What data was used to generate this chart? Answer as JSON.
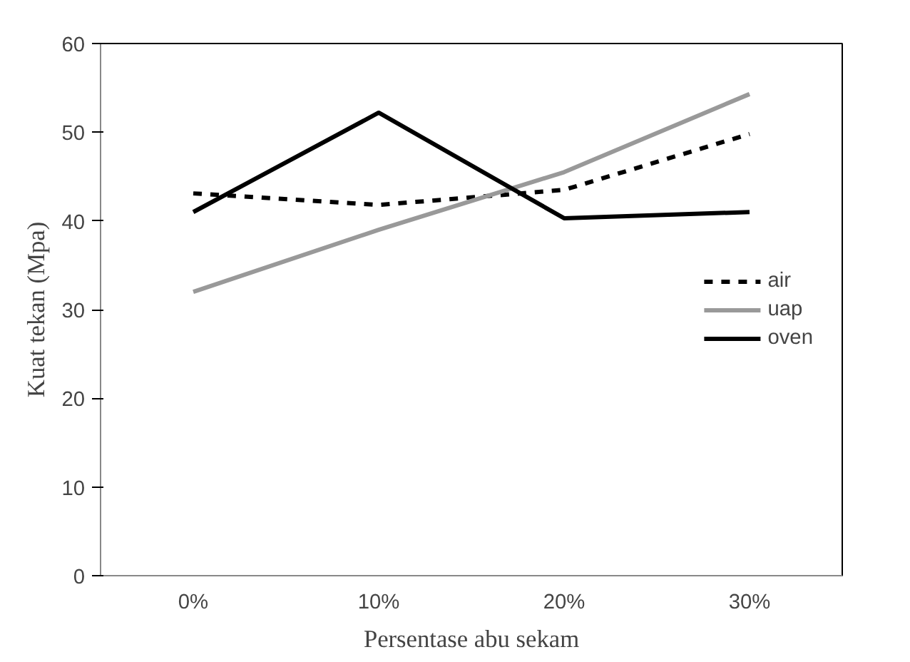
{
  "chart_data": {
    "type": "line",
    "xlabel": "Persentase abu sekam",
    "ylabel": "Kuat tekan (Mpa)",
    "categories": [
      "0%",
      "10%",
      "20%",
      "30%"
    ],
    "series": [
      {
        "name": "air",
        "color": "#000000",
        "line_style": "dashed",
        "values": [
          43.1,
          41.8,
          43.5,
          49.8
        ]
      },
      {
        "name": "uap",
        "color": "#999999",
        "line_style": "solid",
        "values": [
          32,
          39,
          45.5,
          54.3
        ]
      },
      {
        "name": "oven",
        "color": "#000000",
        "line_style": "solid",
        "values": [
          41,
          52.2,
          40.3,
          41
        ]
      }
    ],
    "ylim": [
      0,
      60
    ],
    "yticks": [
      0,
      10,
      20,
      30,
      40,
      50,
      60
    ],
    "grid": false,
    "legend": "right",
    "marker": "none"
  }
}
